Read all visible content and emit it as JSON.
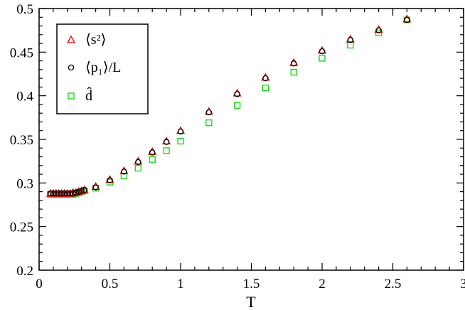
{
  "chart_data": {
    "type": "scatter",
    "title": "",
    "xlabel": "T",
    "ylabel": "",
    "xlim": [
      0,
      3
    ],
    "ylim": [
      0.2,
      0.5
    ],
    "xticks": [
      0,
      0.5,
      1,
      1.5,
      2,
      2.5,
      3
    ],
    "xtick_labels": [
      "0",
      "0.5",
      "1",
      "1.5",
      "2",
      "2.5",
      "3"
    ],
    "yticks": [
      0.2,
      0.25,
      0.3,
      0.35,
      0.4,
      0.45,
      0.5
    ],
    "ytick_labels": [
      "0.2",
      "0.25",
      "0.3",
      "0.35",
      "0.4",
      "0.45",
      "0.5"
    ],
    "grid": false,
    "legend_position": "top-left",
    "series": [
      {
        "name": "⟨s²⟩",
        "marker": "triangle",
        "color": "#ff0000",
        "x": [
          0.08,
          0.1,
          0.12,
          0.14,
          0.16,
          0.18,
          0.2,
          0.22,
          0.24,
          0.26,
          0.28,
          0.3,
          0.32,
          0.4,
          0.5,
          0.6,
          0.7,
          0.8,
          0.9,
          1.0,
          1.2,
          1.4,
          1.6,
          1.8,
          2.0,
          2.2,
          2.4,
          2.6
        ],
        "y": [
          0.288,
          0.288,
          0.288,
          0.288,
          0.288,
          0.288,
          0.288,
          0.288,
          0.289,
          0.289,
          0.29,
          0.291,
          0.292,
          0.296,
          0.304,
          0.314,
          0.325,
          0.336,
          0.348,
          0.36,
          0.382,
          0.403,
          0.421,
          0.438,
          0.452,
          0.465,
          0.476,
          0.488
        ]
      },
      {
        "name": "⟨p₁⟩/L",
        "marker": "circle",
        "color": "#000000",
        "x": [
          0.08,
          0.1,
          0.12,
          0.14,
          0.16,
          0.18,
          0.2,
          0.22,
          0.24,
          0.26,
          0.28,
          0.3,
          0.32,
          0.4,
          0.5,
          0.6,
          0.7,
          0.8,
          0.9,
          1.0,
          1.2,
          1.4,
          1.6,
          1.8,
          2.0,
          2.2,
          2.4,
          2.6
        ],
        "y": [
          0.288,
          0.288,
          0.288,
          0.288,
          0.288,
          0.288,
          0.288,
          0.288,
          0.288,
          0.289,
          0.29,
          0.291,
          0.292,
          0.295,
          0.303,
          0.313,
          0.324,
          0.335,
          0.347,
          0.359,
          0.381,
          0.402,
          0.42,
          0.437,
          0.451,
          0.464,
          0.475,
          0.487
        ]
      },
      {
        "name": "d̂",
        "marker": "square",
        "color": "#00dd00",
        "x": [
          0.08,
          0.1,
          0.12,
          0.14,
          0.16,
          0.18,
          0.2,
          0.22,
          0.24,
          0.26,
          0.28,
          0.3,
          0.32,
          0.4,
          0.5,
          0.6,
          0.7,
          0.8,
          0.9,
          1.0,
          1.2,
          1.4,
          1.6,
          1.8,
          2.0,
          2.2,
          2.4,
          2.6
        ],
        "y": [
          0.287,
          0.287,
          0.287,
          0.287,
          0.287,
          0.287,
          0.287,
          0.287,
          0.287,
          0.288,
          0.289,
          0.29,
          0.291,
          0.294,
          0.301,
          0.308,
          0.317,
          0.327,
          0.337,
          0.348,
          0.369,
          0.389,
          0.409,
          0.427,
          0.443,
          0.458,
          0.472,
          0.487
        ]
      }
    ]
  }
}
